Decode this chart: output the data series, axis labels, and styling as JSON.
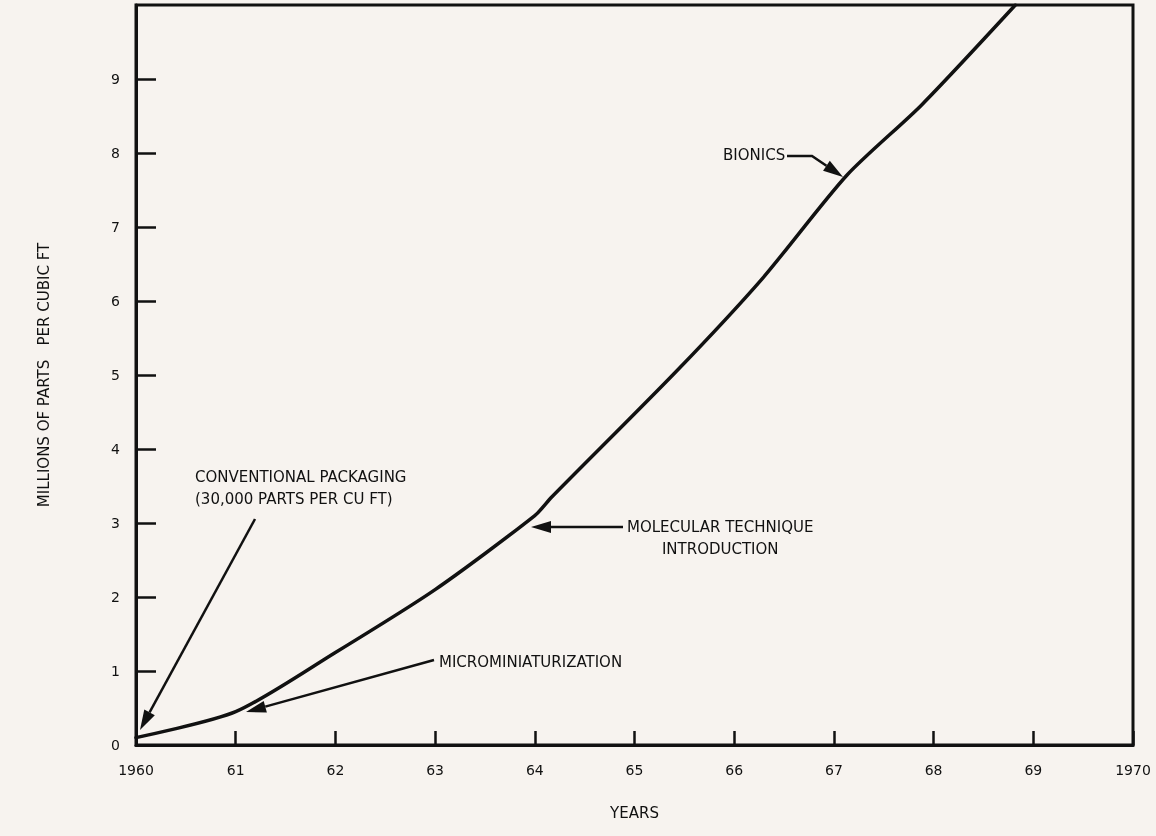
{
  "chart_data": {
    "type": "line",
    "xlabel": "YEARS",
    "ylabel": "MILLIONS OF PARTS   PER CUBIC FT",
    "x": [
      1960,
      1961,
      1962,
      1963,
      1964,
      1964.17,
      1965.42,
      1966.28,
      1967.13,
      1967.88,
      1968.82
    ],
    "series": [
      {
        "color": "#111111",
        "values": [
          0.1,
          0.45,
          1.25,
          2.1,
          3.1,
          3.35,
          5.05,
          6.3,
          7.7,
          8.65,
          10
        ]
      }
    ],
    "xlim": [
      1960,
      1970
    ],
    "xticks": [
      1960,
      {
        "value": 1961,
        "label": "61"
      },
      {
        "value": 1962,
        "label": "62"
      },
      {
        "value": 1963,
        "label": "63"
      },
      {
        "value": 1964,
        "label": "64"
      },
      {
        "value": 1965,
        "label": "65"
      },
      {
        "value": 1966,
        "label": "66"
      },
      {
        "value": 1967,
        "label": "67"
      },
      {
        "value": 1968,
        "label": "68"
      },
      {
        "value": 1969,
        "label": "69"
      },
      1970
    ],
    "ylim": [
      0,
      10
    ],
    "yticks": [
      0,
      1,
      2,
      3,
      4,
      5,
      6,
      7,
      8,
      9
    ],
    "grid": false,
    "marker": "none",
    "line_style": "solid",
    "annotations": [
      "CONVENTIONAL PACKAGING\n(30,000 PARTS PER CU FT)",
      "MICROMINIATURIZATION",
      "MOLECULAR TECHNIQUE\nINTRODUCTION",
      "BIONICS"
    ]
  }
}
